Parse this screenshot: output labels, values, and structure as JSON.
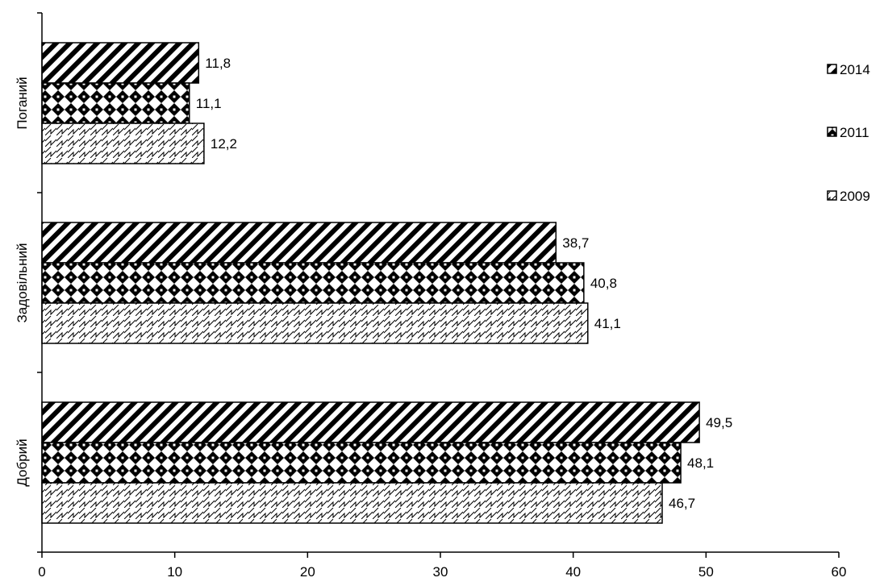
{
  "chart_data": {
    "type": "bar",
    "orientation": "horizontal",
    "categories": [
      "Поганий",
      "Задовільний",
      "Добрий"
    ],
    "series": [
      {
        "name": "2014",
        "values": [
          11.8,
          38.7,
          49.5
        ],
        "pattern": "diagonal-stripes"
      },
      {
        "name": "2011",
        "values": [
          11.1,
          40.8,
          48.1
        ],
        "pattern": "diamonds"
      },
      {
        "name": "2009",
        "values": [
          12.2,
          41.1,
          46.7
        ],
        "pattern": "zigzag"
      }
    ],
    "value_labels": [
      [
        "11,8",
        "38,7",
        "49,5"
      ],
      [
        "11,1",
        "40,8",
        "48,1"
      ],
      [
        "12,2",
        "41,1",
        "46,7"
      ]
    ],
    "x_ticks": [
      "0",
      "10",
      "20",
      "30",
      "40",
      "50",
      "60"
    ],
    "xlim": [
      0,
      60
    ],
    "legend_position": "right",
    "grid": false,
    "colors": {
      "bar_fill": "#ffffff",
      "ink": "#000000"
    }
  }
}
